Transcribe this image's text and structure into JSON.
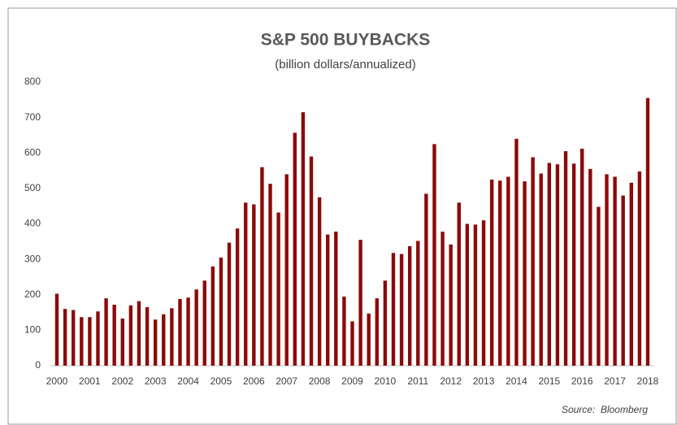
{
  "chart_data": {
    "type": "bar",
    "title": "S&P 500 BUYBACKS",
    "subtitle": "(billion dollars/annualized)",
    "source": "Source:  Bloomberg",
    "categories": [
      "2000",
      null,
      null,
      null,
      "2001",
      null,
      null,
      null,
      "2002",
      null,
      null,
      null,
      "2003",
      null,
      null,
      null,
      "2004",
      null,
      null,
      null,
      "2005",
      null,
      null,
      null,
      "2006",
      null,
      null,
      null,
      "2007",
      null,
      null,
      null,
      "2008",
      null,
      null,
      null,
      "2009",
      null,
      null,
      null,
      "2010",
      null,
      null,
      null,
      "2011",
      null,
      null,
      null,
      "2012",
      null,
      null,
      null,
      "2013",
      null,
      null,
      null,
      "2014",
      null,
      null,
      null,
      "2015",
      null,
      null,
      null,
      "2016",
      null,
      null,
      null,
      "2017",
      null,
      null,
      null,
      "2018"
    ],
    "values": [
      203,
      160,
      157,
      137,
      137,
      153,
      190,
      172,
      133,
      170,
      182,
      165,
      130,
      145,
      162,
      188,
      192,
      215,
      240,
      280,
      305,
      347,
      387,
      460,
      455,
      560,
      513,
      432,
      540,
      657,
      715,
      590,
      475,
      370,
      378,
      195,
      125,
      355,
      147,
      190,
      240,
      318,
      315,
      337,
      352,
      485,
      625,
      378,
      342,
      460,
      400,
      398,
      410,
      525,
      522,
      533,
      640,
      520,
      588,
      542,
      572,
      568,
      605,
      570,
      612,
      555,
      448,
      540,
      533,
      480,
      516,
      548,
      755
    ],
    "color": "#8b0a0a",
    "ylim": [
      0,
      800
    ],
    "yticks": [
      0,
      100,
      200,
      300,
      400,
      500,
      600,
      700,
      800
    ],
    "grid": false
  }
}
